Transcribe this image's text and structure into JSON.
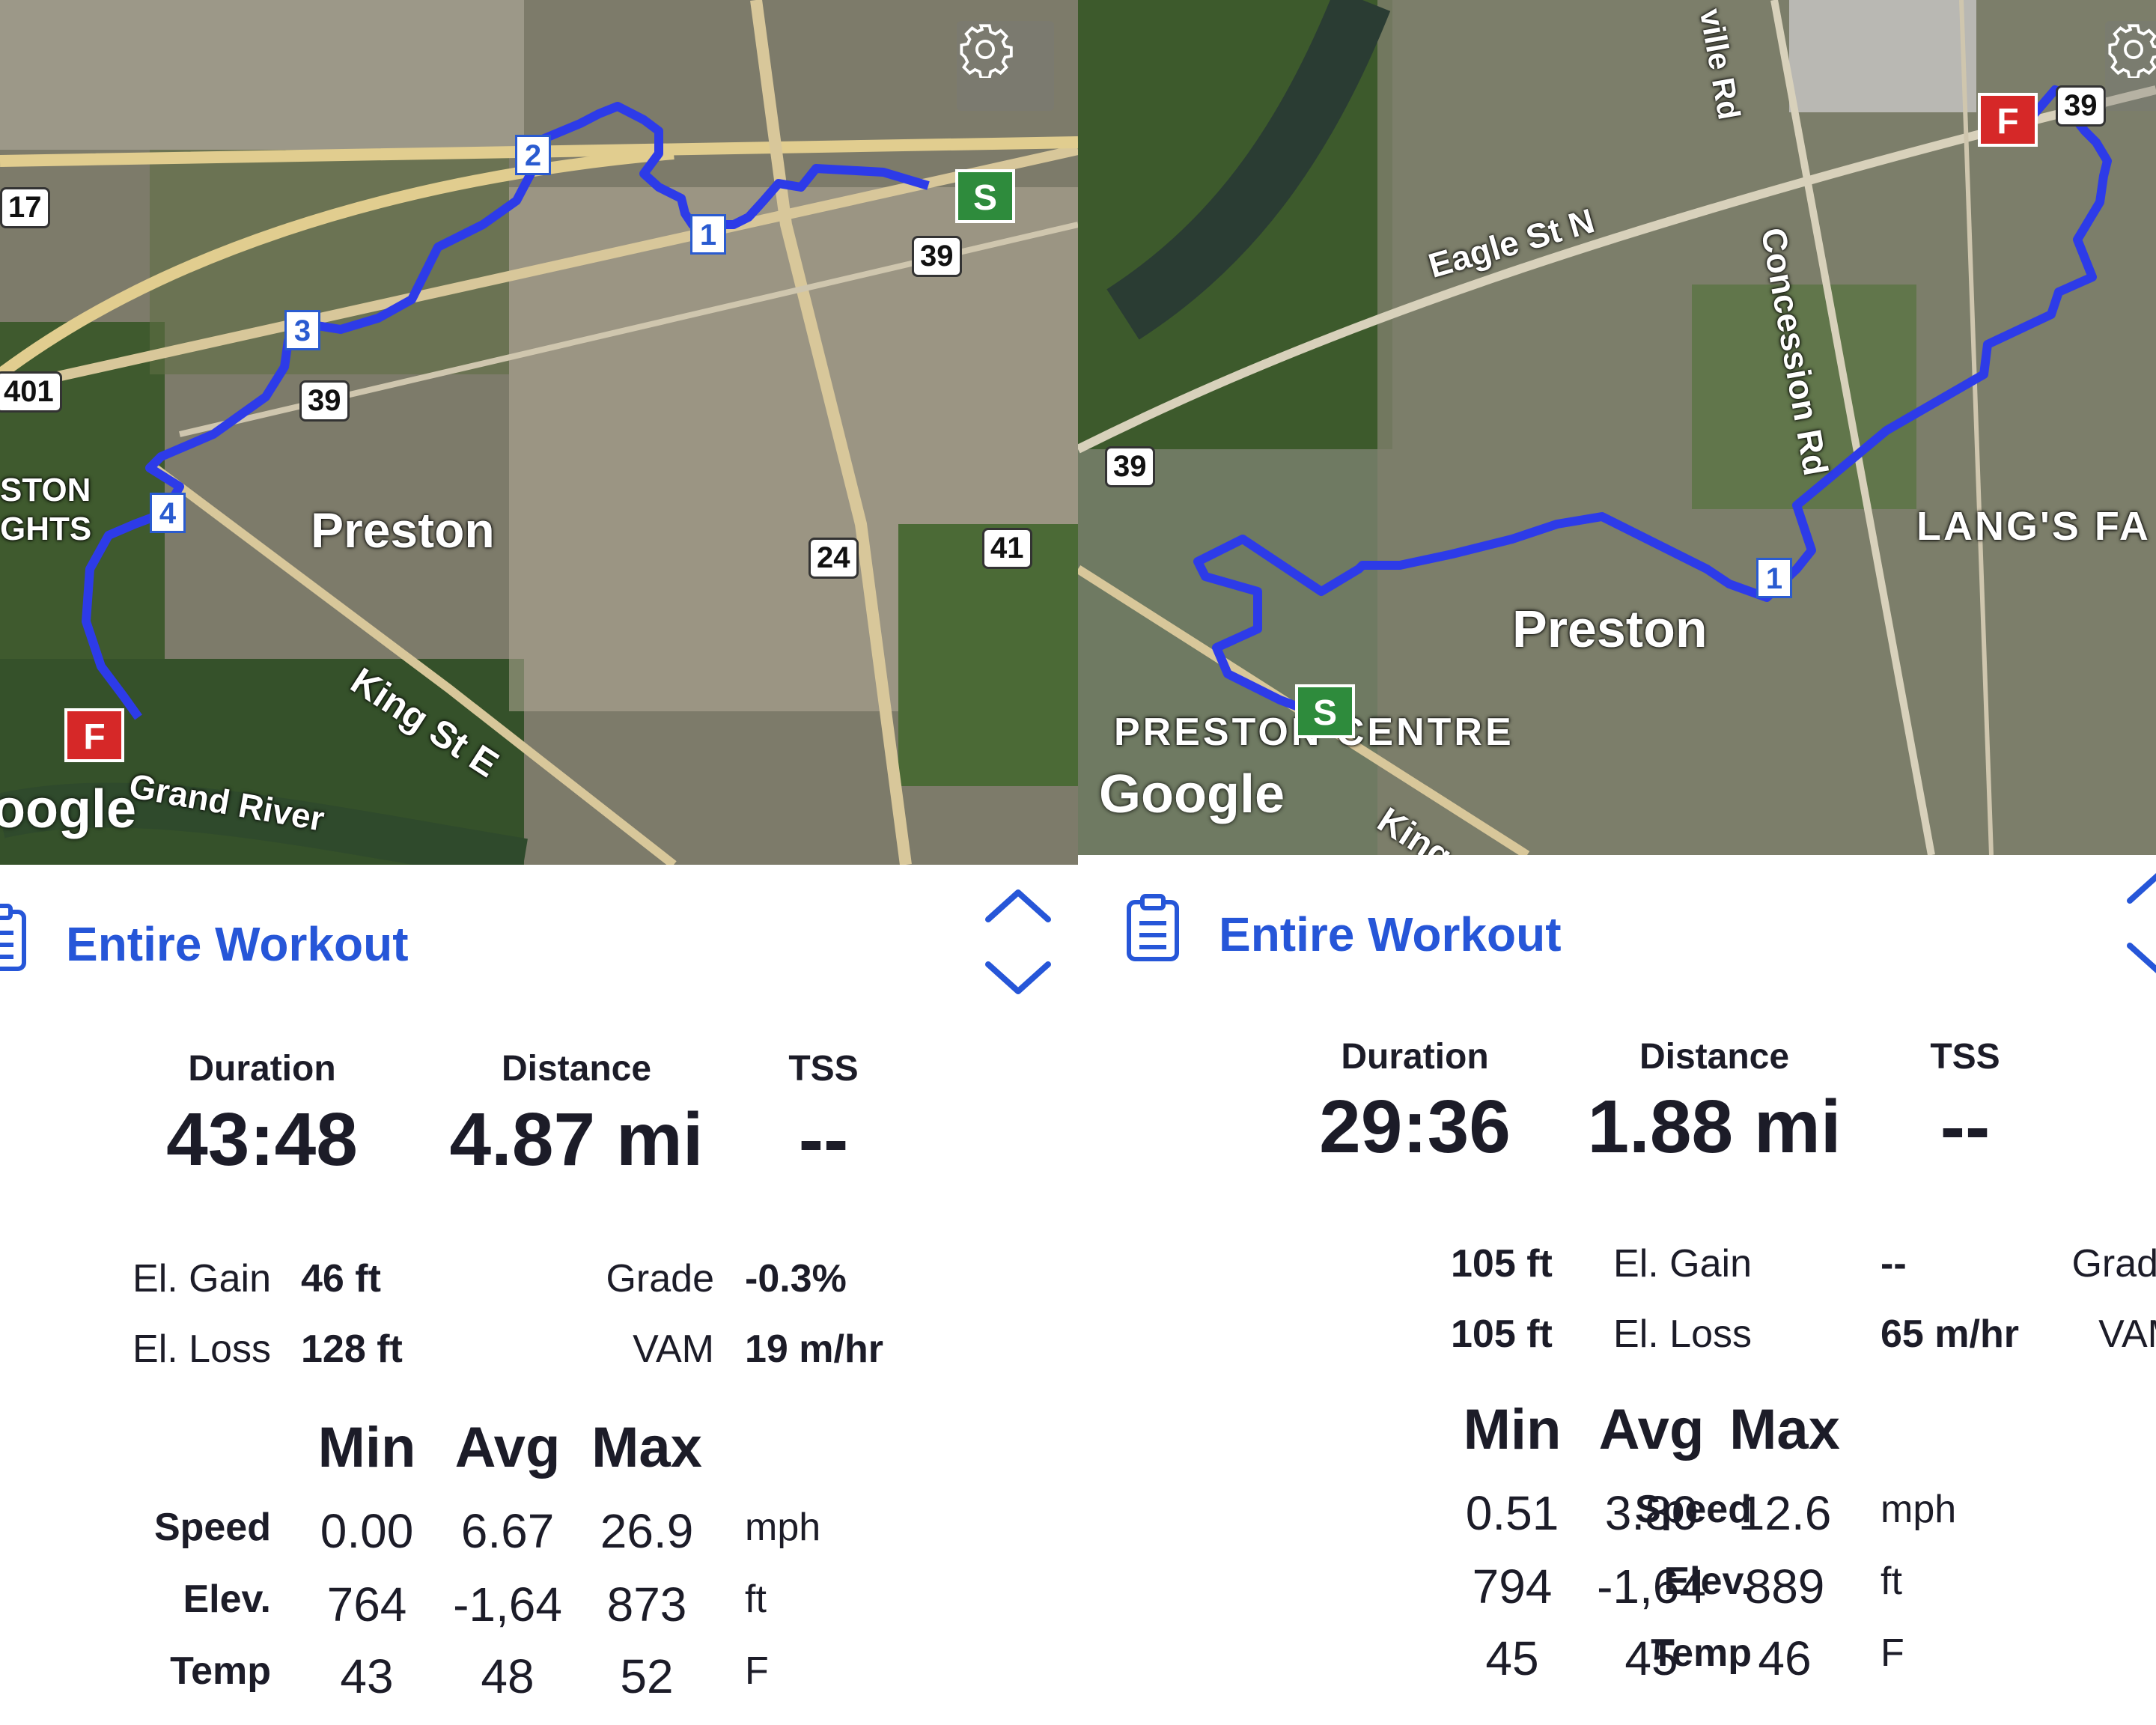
{
  "left": {
    "map": {
      "place_label": "Preston",
      "area_label_1": "STON",
      "area_label_2": "GHTS",
      "street_label": "King St E",
      "river_label": "Grand River",
      "attribution": "oogle",
      "shields": [
        "17",
        "401",
        "39",
        "39",
        "24",
        "41"
      ],
      "laps": [
        "1",
        "2",
        "3",
        "4"
      ],
      "start_flag": "S",
      "finish_flag": "F",
      "route_color": "#2d3be8"
    },
    "summary": {
      "title": "Entire Workout",
      "duration_label": "Duration",
      "duration_value": "43:48",
      "distance_label": "Distance",
      "distance_value": "4.87 mi",
      "tss_label": "TSS",
      "tss_value": "--",
      "el_gain_label": "El. Gain",
      "el_gain_value": "46 ft",
      "el_loss_label": "El. Loss",
      "el_loss_value": "128 ft",
      "grade_label": "Grade",
      "grade_value": "-0.3%",
      "vam_label": "VAM",
      "vam_value": "19 m/hr"
    },
    "table": {
      "headers": [
        "Min",
        "Avg",
        "Max"
      ],
      "rows": [
        {
          "label": "Speed",
          "min": "0.00",
          "avg": "6.67",
          "max": "26.9",
          "unit": "mph"
        },
        {
          "label": "Elev.",
          "min": "764",
          "avg": "-1,64",
          "max": "873",
          "unit": "ft"
        },
        {
          "label": "Temp",
          "min": "43",
          "avg": "48",
          "max": "52",
          "unit": "F"
        }
      ]
    }
  },
  "right": {
    "map": {
      "place_label": "Preston",
      "area_label": "PRESTON CENTRE",
      "area_label_2": "LANG'S FA",
      "street_label_1": "Eagle St N",
      "street_label_2": "Concession Rd",
      "street_label_3": "ville Rd",
      "street_label_4": "King",
      "attribution": "Google",
      "shields": [
        "39",
        "39"
      ],
      "laps": [
        "1"
      ],
      "start_flag": "S",
      "finish_flag": "F",
      "route_color": "#2d3be8"
    },
    "summary": {
      "title": "Entire Workout",
      "duration_label": "Duration",
      "duration_value": "29:36",
      "distance_label": "Distance",
      "distance_value": "1.88 mi",
      "tss_label": "TSS",
      "tss_value": "--",
      "el_gain_label": "El. Gain",
      "el_gain_value": "105 ft",
      "el_loss_label": "El. Loss",
      "el_loss_value": "105 ft",
      "grade_label": "Grade",
      "grade_value": "--",
      "vam_label": "VAM",
      "vam_value": "65 m/hr"
    },
    "table": {
      "headers": [
        "Min",
        "Avg",
        "Max"
      ],
      "rows": [
        {
          "label": "Speed",
          "min": "0.51",
          "avg": "3.80",
          "max": "12.6",
          "unit": "mph"
        },
        {
          "label": "Elev.",
          "min": "794",
          "avg": "-1,64",
          "max": "889",
          "unit": "ft"
        },
        {
          "label": "Temp",
          "min": "45",
          "avg": "45",
          "max": "46",
          "unit": "F"
        }
      ]
    }
  },
  "icons": {
    "settings": "gear-icon",
    "summary": "clipboard-icon",
    "expand_up": "chevron-up-icon",
    "expand_down": "chevron-down-icon"
  },
  "colors": {
    "accent": "#2656d8",
    "route": "#2d3be8",
    "start": "#2e8b3c",
    "finish": "#d62828",
    "text": "#1c1c28"
  }
}
